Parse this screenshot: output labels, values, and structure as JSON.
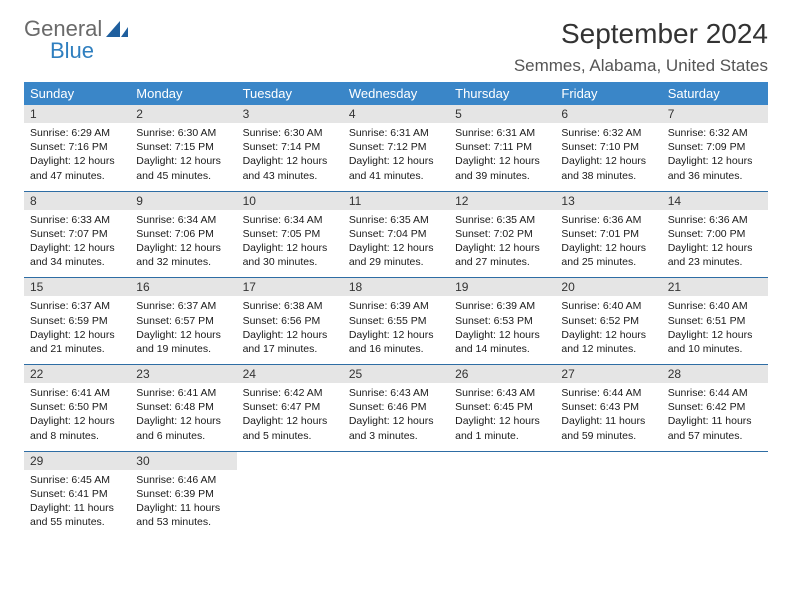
{
  "brand": {
    "word1": "General",
    "word2": "Blue"
  },
  "title": "September 2024",
  "location": "Semmes, Alabama, United States",
  "colors": {
    "header_bg": "#3a86c8",
    "border": "#2e6da4",
    "daynum_bg": "#e5e5e5"
  },
  "weekdays": [
    "Sunday",
    "Monday",
    "Tuesday",
    "Wednesday",
    "Thursday",
    "Friday",
    "Saturday"
  ],
  "weeks": [
    [
      {
        "n": "1",
        "sr": "Sunrise: 6:29 AM",
        "ss": "Sunset: 7:16 PM",
        "d1": "Daylight: 12 hours",
        "d2": "and 47 minutes."
      },
      {
        "n": "2",
        "sr": "Sunrise: 6:30 AM",
        "ss": "Sunset: 7:15 PM",
        "d1": "Daylight: 12 hours",
        "d2": "and 45 minutes."
      },
      {
        "n": "3",
        "sr": "Sunrise: 6:30 AM",
        "ss": "Sunset: 7:14 PM",
        "d1": "Daylight: 12 hours",
        "d2": "and 43 minutes."
      },
      {
        "n": "4",
        "sr": "Sunrise: 6:31 AM",
        "ss": "Sunset: 7:12 PM",
        "d1": "Daylight: 12 hours",
        "d2": "and 41 minutes."
      },
      {
        "n": "5",
        "sr": "Sunrise: 6:31 AM",
        "ss": "Sunset: 7:11 PM",
        "d1": "Daylight: 12 hours",
        "d2": "and 39 minutes."
      },
      {
        "n": "6",
        "sr": "Sunrise: 6:32 AM",
        "ss": "Sunset: 7:10 PM",
        "d1": "Daylight: 12 hours",
        "d2": "and 38 minutes."
      },
      {
        "n": "7",
        "sr": "Sunrise: 6:32 AM",
        "ss": "Sunset: 7:09 PM",
        "d1": "Daylight: 12 hours",
        "d2": "and 36 minutes."
      }
    ],
    [
      {
        "n": "8",
        "sr": "Sunrise: 6:33 AM",
        "ss": "Sunset: 7:07 PM",
        "d1": "Daylight: 12 hours",
        "d2": "and 34 minutes."
      },
      {
        "n": "9",
        "sr": "Sunrise: 6:34 AM",
        "ss": "Sunset: 7:06 PM",
        "d1": "Daylight: 12 hours",
        "d2": "and 32 minutes."
      },
      {
        "n": "10",
        "sr": "Sunrise: 6:34 AM",
        "ss": "Sunset: 7:05 PM",
        "d1": "Daylight: 12 hours",
        "d2": "and 30 minutes."
      },
      {
        "n": "11",
        "sr": "Sunrise: 6:35 AM",
        "ss": "Sunset: 7:04 PM",
        "d1": "Daylight: 12 hours",
        "d2": "and 29 minutes."
      },
      {
        "n": "12",
        "sr": "Sunrise: 6:35 AM",
        "ss": "Sunset: 7:02 PM",
        "d1": "Daylight: 12 hours",
        "d2": "and 27 minutes."
      },
      {
        "n": "13",
        "sr": "Sunrise: 6:36 AM",
        "ss": "Sunset: 7:01 PM",
        "d1": "Daylight: 12 hours",
        "d2": "and 25 minutes."
      },
      {
        "n": "14",
        "sr": "Sunrise: 6:36 AM",
        "ss": "Sunset: 7:00 PM",
        "d1": "Daylight: 12 hours",
        "d2": "and 23 minutes."
      }
    ],
    [
      {
        "n": "15",
        "sr": "Sunrise: 6:37 AM",
        "ss": "Sunset: 6:59 PM",
        "d1": "Daylight: 12 hours",
        "d2": "and 21 minutes."
      },
      {
        "n": "16",
        "sr": "Sunrise: 6:37 AM",
        "ss": "Sunset: 6:57 PM",
        "d1": "Daylight: 12 hours",
        "d2": "and 19 minutes."
      },
      {
        "n": "17",
        "sr": "Sunrise: 6:38 AM",
        "ss": "Sunset: 6:56 PM",
        "d1": "Daylight: 12 hours",
        "d2": "and 17 minutes."
      },
      {
        "n": "18",
        "sr": "Sunrise: 6:39 AM",
        "ss": "Sunset: 6:55 PM",
        "d1": "Daylight: 12 hours",
        "d2": "and 16 minutes."
      },
      {
        "n": "19",
        "sr": "Sunrise: 6:39 AM",
        "ss": "Sunset: 6:53 PM",
        "d1": "Daylight: 12 hours",
        "d2": "and 14 minutes."
      },
      {
        "n": "20",
        "sr": "Sunrise: 6:40 AM",
        "ss": "Sunset: 6:52 PM",
        "d1": "Daylight: 12 hours",
        "d2": "and 12 minutes."
      },
      {
        "n": "21",
        "sr": "Sunrise: 6:40 AM",
        "ss": "Sunset: 6:51 PM",
        "d1": "Daylight: 12 hours",
        "d2": "and 10 minutes."
      }
    ],
    [
      {
        "n": "22",
        "sr": "Sunrise: 6:41 AM",
        "ss": "Sunset: 6:50 PM",
        "d1": "Daylight: 12 hours",
        "d2": "and 8 minutes."
      },
      {
        "n": "23",
        "sr": "Sunrise: 6:41 AM",
        "ss": "Sunset: 6:48 PM",
        "d1": "Daylight: 12 hours",
        "d2": "and 6 minutes."
      },
      {
        "n": "24",
        "sr": "Sunrise: 6:42 AM",
        "ss": "Sunset: 6:47 PM",
        "d1": "Daylight: 12 hours",
        "d2": "and 5 minutes."
      },
      {
        "n": "25",
        "sr": "Sunrise: 6:43 AM",
        "ss": "Sunset: 6:46 PM",
        "d1": "Daylight: 12 hours",
        "d2": "and 3 minutes."
      },
      {
        "n": "26",
        "sr": "Sunrise: 6:43 AM",
        "ss": "Sunset: 6:45 PM",
        "d1": "Daylight: 12 hours",
        "d2": "and 1 minute."
      },
      {
        "n": "27",
        "sr": "Sunrise: 6:44 AM",
        "ss": "Sunset: 6:43 PM",
        "d1": "Daylight: 11 hours",
        "d2": "and 59 minutes."
      },
      {
        "n": "28",
        "sr": "Sunrise: 6:44 AM",
        "ss": "Sunset: 6:42 PM",
        "d1": "Daylight: 11 hours",
        "d2": "and 57 minutes."
      }
    ],
    [
      {
        "n": "29",
        "sr": "Sunrise: 6:45 AM",
        "ss": "Sunset: 6:41 PM",
        "d1": "Daylight: 11 hours",
        "d2": "and 55 minutes."
      },
      {
        "n": "30",
        "sr": "Sunrise: 6:46 AM",
        "ss": "Sunset: 6:39 PM",
        "d1": "Daylight: 11 hours",
        "d2": "and 53 minutes."
      },
      null,
      null,
      null,
      null,
      null
    ]
  ]
}
